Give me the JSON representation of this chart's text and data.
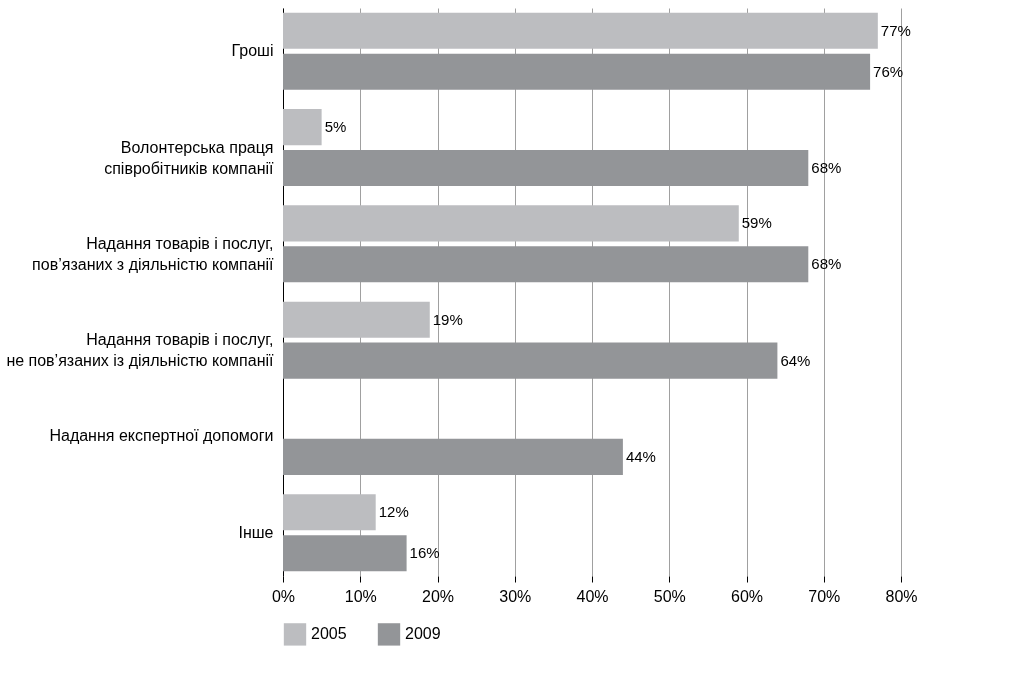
{
  "chart_data": {
    "type": "bar",
    "orientation": "horizontal",
    "categories": [
      "Гроші",
      "Волонтерська праця\nспівробітників компанії",
      "Надання товарів і послуг,\nпов’язаних з діяльністю компанії",
      "Надання товарів і послуг,\nне пов’язаних із діяльністю компанії",
      "Надання експертної допомоги",
      "Інше"
    ],
    "series": [
      {
        "name": "2005",
        "color": "#bcbdc0",
        "values": [
          77,
          5,
          59,
          19,
          null,
          12
        ],
        "value_labels": [
          "77%",
          "5%",
          "59%",
          "19%",
          null,
          "12%"
        ]
      },
      {
        "name": "2009",
        "color": "#939598",
        "values": [
          76,
          68,
          68,
          64,
          44,
          16
        ],
        "value_labels": [
          "76%",
          "68%",
          "68%",
          "64%",
          "44%",
          "16%"
        ]
      }
    ],
    "xlim": [
      0,
      80
    ],
    "xticks": [
      {
        "value": 0,
        "label": "0%"
      },
      {
        "value": 10,
        "label": "10%"
      },
      {
        "value": 20,
        "label": "20%"
      },
      {
        "value": 30,
        "label": "30%"
      },
      {
        "value": 40,
        "label": "40%"
      },
      {
        "value": 50,
        "label": "50%"
      },
      {
        "value": 60,
        "label": "60%"
      },
      {
        "value": 70,
        "label": "70%"
      },
      {
        "value": 80,
        "label": "80%"
      }
    ],
    "grid": "x",
    "legend": "bottom"
  }
}
